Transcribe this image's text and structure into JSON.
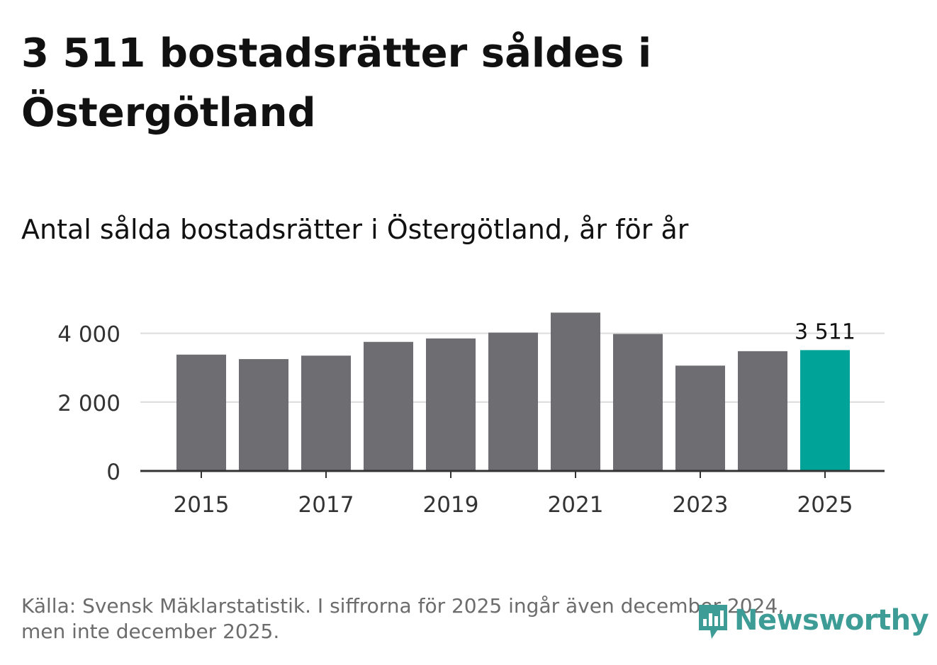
{
  "headline": "3 511 bostadsrätter såldes i Östergötland",
  "subtitle": "Antal sålda bostadsrätter i Östergötland, år för år",
  "footer": {
    "line1": "Källa: Svensk Mäklarstatistik. I siffrorna för 2025 ingår även december 2024,",
    "line2": "men inte december 2025."
  },
  "brand": {
    "name": "Newsworthy",
    "icon": "bar-chart-speech-bubble-icon"
  },
  "colors": {
    "bar": "#6d6d72",
    "highlight": "#00a398",
    "grid": "#dcdcdc",
    "axis": "#333333",
    "brand": "#3e9c96"
  },
  "chart_data": {
    "type": "bar",
    "title": "Antal sålda bostadsrätter i Östergötland, år för år",
    "categories": [
      "2015",
      "2016",
      "2017",
      "2018",
      "2019",
      "2020",
      "2021",
      "2022",
      "2023",
      "2024",
      "2025"
    ],
    "values": [
      3380,
      3250,
      3350,
      3750,
      3850,
      4020,
      4600,
      3980,
      3060,
      3480,
      3511
    ],
    "highlight_index": 10,
    "highlight_label": "3 511",
    "xtick_labels": [
      "2015",
      "2017",
      "2019",
      "2021",
      "2023",
      "2025"
    ],
    "ytick_values": [
      0,
      2000,
      4000
    ],
    "ytick_labels": [
      "0",
      "2 000",
      "4 000"
    ],
    "ylim": [
      0,
      4600
    ],
    "xlabel": "",
    "ylabel": "",
    "grid": true,
    "legend": "none"
  }
}
